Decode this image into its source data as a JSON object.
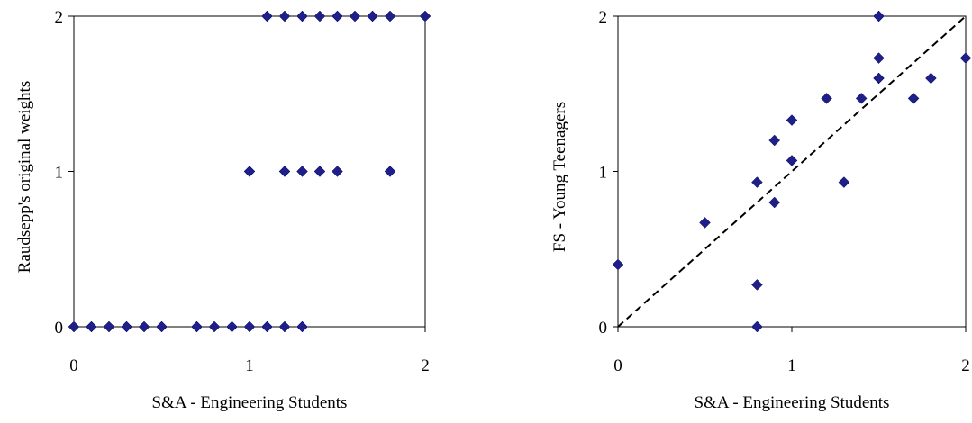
{
  "chart_data": [
    {
      "type": "scatter",
      "xlabel": "S&A - Engineering Students",
      "ylabel": "Raudsepp's original weights",
      "xlim": [
        0,
        2
      ],
      "ylim": [
        0,
        2
      ],
      "xticks": [
        "0",
        "1",
        "2"
      ],
      "yticks": [
        "0",
        "1",
        "2"
      ],
      "grid": false,
      "frame": true,
      "marker": "diamond",
      "marker_color": "#1f1f8a",
      "points": [
        {
          "x": 0.0,
          "y": 0
        },
        {
          "x": 0.1,
          "y": 0
        },
        {
          "x": 0.2,
          "y": 0
        },
        {
          "x": 0.3,
          "y": 0
        },
        {
          "x": 0.4,
          "y": 0
        },
        {
          "x": 0.5,
          "y": 0
        },
        {
          "x": 0.7,
          "y": 0
        },
        {
          "x": 0.8,
          "y": 0
        },
        {
          "x": 0.9,
          "y": 0
        },
        {
          "x": 1.0,
          "y": 0
        },
        {
          "x": 1.1,
          "y": 0
        },
        {
          "x": 1.2,
          "y": 0
        },
        {
          "x": 1.3,
          "y": 0
        },
        {
          "x": 1.0,
          "y": 1
        },
        {
          "x": 1.2,
          "y": 1
        },
        {
          "x": 1.3,
          "y": 1
        },
        {
          "x": 1.4,
          "y": 1
        },
        {
          "x": 1.5,
          "y": 1
        },
        {
          "x": 1.8,
          "y": 1
        },
        {
          "x": 1.1,
          "y": 2
        },
        {
          "x": 1.2,
          "y": 2
        },
        {
          "x": 1.3,
          "y": 2
        },
        {
          "x": 1.4,
          "y": 2
        },
        {
          "x": 1.5,
          "y": 2
        },
        {
          "x": 1.6,
          "y": 2
        },
        {
          "x": 1.7,
          "y": 2
        },
        {
          "x": 1.8,
          "y": 2
        },
        {
          "x": 2.0,
          "y": 2
        }
      ]
    },
    {
      "type": "scatter",
      "xlabel": "S&A - Engineering Students",
      "ylabel": "FS - Young Teenagers",
      "xlim": [
        0,
        2
      ],
      "ylim": [
        0,
        2
      ],
      "xticks": [
        "0",
        "1",
        "2"
      ],
      "yticks": [
        "0",
        "1",
        "2"
      ],
      "grid": false,
      "frame": true,
      "marker": "diamond",
      "marker_color": "#1f1f8a",
      "reference_line": {
        "style": "dashed",
        "from": [
          0,
          0
        ],
        "to": [
          2,
          2
        ]
      },
      "points": [
        {
          "x": 0.0,
          "y": 0.4
        },
        {
          "x": 0.5,
          "y": 0.67
        },
        {
          "x": 0.8,
          "y": 0.93
        },
        {
          "x": 0.8,
          "y": 0.27
        },
        {
          "x": 0.8,
          "y": 0.0
        },
        {
          "x": 0.9,
          "y": 1.2
        },
        {
          "x": 0.9,
          "y": 0.8
        },
        {
          "x": 1.0,
          "y": 1.33
        },
        {
          "x": 1.0,
          "y": 1.07
        },
        {
          "x": 1.2,
          "y": 1.47
        },
        {
          "x": 1.3,
          "y": 0.93
        },
        {
          "x": 1.4,
          "y": 1.47
        },
        {
          "x": 1.5,
          "y": 2.0
        },
        {
          "x": 1.5,
          "y": 1.73
        },
        {
          "x": 1.5,
          "y": 1.6
        },
        {
          "x": 1.7,
          "y": 1.47
        },
        {
          "x": 1.8,
          "y": 1.6
        },
        {
          "x": 2.0,
          "y": 1.73
        }
      ]
    }
  ]
}
